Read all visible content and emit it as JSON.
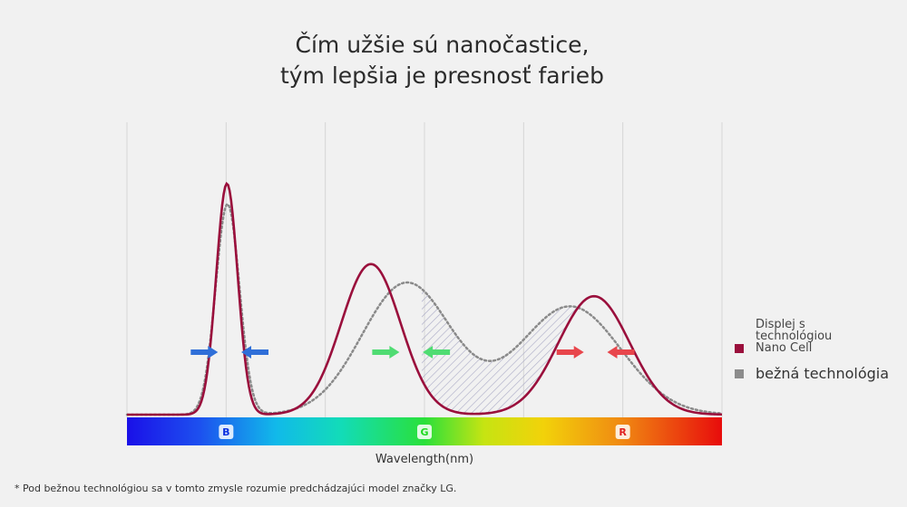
{
  "chart_data": {
    "type": "line",
    "title_lines": [
      "Čím užšie sú nanočastice,",
      "tým lepšia je presnosť farieb"
    ],
    "xlabel": "Wavelength(nm)",
    "band_labels": [
      {
        "label": "B",
        "color": "#0a2fe0"
      },
      {
        "label": "G",
        "color": "#1fd91f"
      },
      {
        "label": "R",
        "color": "#e02020"
      }
    ],
    "series": [
      {
        "name": "Displej s technológiou Nano Cell",
        "style": "solid",
        "color": "#9a0f3c",
        "peaks": [
          {
            "position": 0.168,
            "height": 0.79,
            "width": 0.018
          },
          {
            "position": 0.41,
            "height": 0.515,
            "width": 0.05
          },
          {
            "position": 0.785,
            "height": 0.405,
            "width": 0.06
          }
        ],
        "baseline": 0.0
      },
      {
        "name": "bežná technológia",
        "style": "dotted",
        "color": "#8a8a8a",
        "peaks": [
          {
            "position": 0.169,
            "height": 0.72,
            "width": 0.02
          },
          {
            "position": 0.47,
            "height": 0.45,
            "width": 0.075
          },
          {
            "position": 0.745,
            "height": 0.37,
            "width": 0.085
          }
        ],
        "baseline": 0.0
      }
    ],
    "arrows": [
      {
        "position": 0.13,
        "direction": "right",
        "color": "#2f6fd8"
      },
      {
        "position": 0.215,
        "direction": "left",
        "color": "#2f6fd8"
      },
      {
        "position": 0.435,
        "direction": "right",
        "color": "#4fdc72"
      },
      {
        "position": 0.52,
        "direction": "left",
        "color": "#4fdc72"
      },
      {
        "position": 0.745,
        "direction": "right",
        "color": "#e8464c"
      },
      {
        "position": 0.83,
        "direction": "left",
        "color": "#e8464c"
      }
    ],
    "gridlines": 6,
    "grid": true,
    "legend_placement": "right"
  },
  "legend": {
    "nano_label": "Displej s technológiou Nano Cell",
    "legacy_label": "bežná technológia",
    "nano_color": "#9a0f3c",
    "legacy_color": "#8c8c8c"
  },
  "footnote": "* Pod bežnou technológiou sa v tomto zmysle rozumie predchádzajúci model značky LG."
}
